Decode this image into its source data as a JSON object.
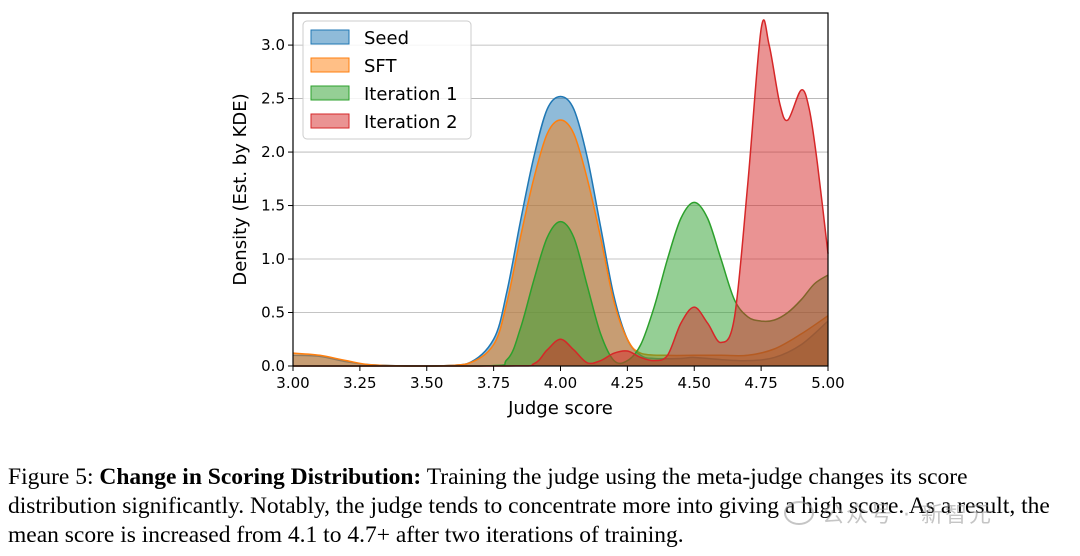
{
  "chart_data": {
    "type": "area",
    "xlabel": "Judge score",
    "ylabel": "Density (Est. by KDE)",
    "xlim": [
      3.0,
      5.0
    ],
    "ylim": [
      0.0,
      3.3
    ],
    "xticks": [
      "3.00",
      "3.25",
      "3.50",
      "3.75",
      "4.00",
      "4.25",
      "4.50",
      "4.75",
      "5.00"
    ],
    "yticks": [
      "0.0",
      "0.5",
      "1.0",
      "1.5",
      "2.0",
      "2.5",
      "3.0"
    ],
    "grid": "horizontal",
    "legend_position": "top-left",
    "series": [
      {
        "name": "Seed",
        "color": "#1f77b4",
        "points": [
          [
            3.0,
            0.1
          ],
          [
            3.1,
            0.09
          ],
          [
            3.2,
            0.04
          ],
          [
            3.3,
            0.01
          ],
          [
            3.5,
            0.0
          ],
          [
            3.65,
            0.02
          ],
          [
            3.75,
            0.25
          ],
          [
            3.8,
            0.7
          ],
          [
            3.85,
            1.35
          ],
          [
            3.9,
            1.95
          ],
          [
            3.95,
            2.4
          ],
          [
            4.0,
            2.52
          ],
          [
            4.05,
            2.4
          ],
          [
            4.1,
            1.95
          ],
          [
            4.15,
            1.3
          ],
          [
            4.2,
            0.65
          ],
          [
            4.25,
            0.25
          ],
          [
            4.3,
            0.1
          ],
          [
            4.35,
            0.07
          ],
          [
            4.45,
            0.07
          ],
          [
            4.5,
            0.08
          ],
          [
            4.6,
            0.06
          ],
          [
            4.7,
            0.05
          ],
          [
            4.8,
            0.08
          ],
          [
            4.9,
            0.2
          ],
          [
            5.0,
            0.42
          ]
        ]
      },
      {
        "name": "SFT",
        "color": "#ff7f0e",
        "points": [
          [
            3.0,
            0.12
          ],
          [
            3.1,
            0.1
          ],
          [
            3.2,
            0.05
          ],
          [
            3.3,
            0.01
          ],
          [
            3.5,
            0.0
          ],
          [
            3.65,
            0.02
          ],
          [
            3.75,
            0.2
          ],
          [
            3.8,
            0.6
          ],
          [
            3.85,
            1.2
          ],
          [
            3.9,
            1.75
          ],
          [
            3.95,
            2.17
          ],
          [
            4.0,
            2.3
          ],
          [
            4.05,
            2.17
          ],
          [
            4.1,
            1.75
          ],
          [
            4.15,
            1.2
          ],
          [
            4.2,
            0.6
          ],
          [
            4.25,
            0.25
          ],
          [
            4.3,
            0.12
          ],
          [
            4.4,
            0.1
          ],
          [
            4.5,
            0.1
          ],
          [
            4.6,
            0.1
          ],
          [
            4.7,
            0.1
          ],
          [
            4.8,
            0.16
          ],
          [
            4.9,
            0.3
          ],
          [
            5.0,
            0.47
          ]
        ]
      },
      {
        "name": "Iteration 1",
        "color": "#2ca02c",
        "points": [
          [
            3.0,
            0.0
          ],
          [
            3.7,
            0.0
          ],
          [
            3.8,
            0.06
          ],
          [
            3.85,
            0.35
          ],
          [
            3.9,
            0.8
          ],
          [
            3.95,
            1.2
          ],
          [
            4.0,
            1.35
          ],
          [
            4.05,
            1.2
          ],
          [
            4.1,
            0.75
          ],
          [
            4.15,
            0.3
          ],
          [
            4.2,
            0.05
          ],
          [
            4.25,
            0.05
          ],
          [
            4.3,
            0.2
          ],
          [
            4.35,
            0.55
          ],
          [
            4.4,
            1.0
          ],
          [
            4.45,
            1.38
          ],
          [
            4.5,
            1.53
          ],
          [
            4.55,
            1.38
          ],
          [
            4.6,
            1.0
          ],
          [
            4.65,
            0.62
          ],
          [
            4.7,
            0.46
          ],
          [
            4.75,
            0.42
          ],
          [
            4.8,
            0.43
          ],
          [
            4.85,
            0.5
          ],
          [
            4.9,
            0.62
          ],
          [
            4.95,
            0.77
          ],
          [
            5.0,
            0.85
          ]
        ]
      },
      {
        "name": "Iteration 2",
        "color": "#d62728",
        "points": [
          [
            3.0,
            0.0
          ],
          [
            3.8,
            0.0
          ],
          [
            3.9,
            0.02
          ],
          [
            3.95,
            0.15
          ],
          [
            4.0,
            0.25
          ],
          [
            4.05,
            0.15
          ],
          [
            4.1,
            0.03
          ],
          [
            4.15,
            0.05
          ],
          [
            4.2,
            0.12
          ],
          [
            4.25,
            0.14
          ],
          [
            4.3,
            0.08
          ],
          [
            4.35,
            0.05
          ],
          [
            4.4,
            0.1
          ],
          [
            4.45,
            0.4
          ],
          [
            4.5,
            0.55
          ],
          [
            4.55,
            0.4
          ],
          [
            4.6,
            0.22
          ],
          [
            4.65,
            0.45
          ],
          [
            4.7,
            1.7
          ],
          [
            4.75,
            3.15
          ],
          [
            4.78,
            3.0
          ],
          [
            4.82,
            2.45
          ],
          [
            4.85,
            2.3
          ],
          [
            4.9,
            2.58
          ],
          [
            4.93,
            2.4
          ],
          [
            4.96,
            1.9
          ],
          [
            5.0,
            1.05
          ]
        ]
      }
    ]
  },
  "caption": {
    "prefix": "Figure 5: ",
    "bold": "Change in Scoring Distribution:",
    "text": " Training the judge using the meta-judge changes its score distribution significantly.  Notably, the judge tends to concentrate more into giving a high score. As a result, the mean score is increased from 4.1 to 4.7+ after two iterations of training."
  },
  "watermark": "公众号 · 新智元"
}
